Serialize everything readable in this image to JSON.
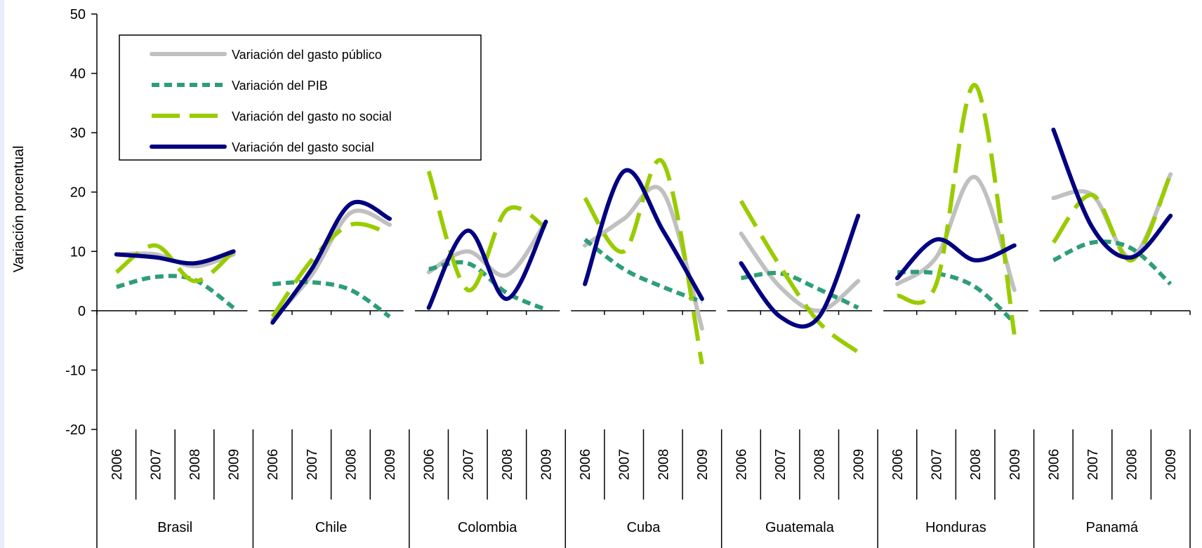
{
  "chart_data": {
    "type": "line",
    "ylabel": "Variación porcentual",
    "ylim": [
      -20,
      50
    ],
    "yticks": [
      -20,
      -10,
      0,
      10,
      20,
      30,
      40,
      50
    ],
    "groups": [
      "Brasil",
      "Chile",
      "Colombia",
      "Cuba",
      "Guatemala",
      "Honduras",
      "Panamá"
    ],
    "years": [
      "2006",
      "2007",
      "2008",
      "2009"
    ],
    "legend_position": "top-left",
    "series": [
      {
        "name": "Variación del gasto público",
        "color": "#c0c0c0",
        "style": "solid",
        "values": [
          [
            9.5,
            9.5,
            7.5,
            9.5
          ],
          [
            -1.5,
            6,
            16.5,
            14.5
          ],
          [
            6.5,
            10,
            6,
            15
          ],
          [
            11,
            15.5,
            20,
            -3
          ],
          [
            13,
            4,
            0,
            5
          ],
          [
            4.5,
            9,
            22.5,
            3.5
          ],
          [
            19,
            19.5,
            9,
            23
          ]
        ]
      },
      {
        "name": "Variación del PIB",
        "color": "#2e9e78",
        "style": "dotted",
        "values": [
          [
            4,
            5.7,
            5.2,
            0.5
          ],
          [
            4.5,
            4.8,
            3.5,
            -1
          ],
          [
            7,
            8,
            3,
            0.2
          ],
          [
            12,
            7,
            4,
            1.5
          ],
          [
            5.5,
            6.3,
            3.6,
            0.5
          ],
          [
            6.5,
            6.3,
            4,
            -2
          ],
          [
            8.5,
            11.5,
            10.5,
            4.5
          ]
        ]
      },
      {
        "name": "Variación del gasto no social",
        "color": "#99cc00",
        "style": "dashed",
        "values": [
          [
            6.5,
            11,
            5,
            10
          ],
          [
            -1,
            8.5,
            14.5,
            13
          ],
          [
            23.5,
            3.5,
            17,
            14
          ],
          [
            19,
            10,
            25,
            -9
          ],
          [
            18.5,
            7.5,
            -2,
            -7
          ],
          [
            2.5,
            4.5,
            38,
            -4
          ],
          [
            11.5,
            19.5,
            8.5,
            23
          ]
        ]
      },
      {
        "name": "Variación del gasto social",
        "color": "#000080",
        "style": "solid",
        "values": [
          [
            9.5,
            9,
            8,
            10
          ],
          [
            -2,
            7,
            18,
            15.5
          ],
          [
            0.5,
            13.5,
            2,
            15
          ],
          [
            4.5,
            23.5,
            13.5,
            2
          ],
          [
            8,
            -1,
            -1,
            16
          ],
          [
            5.5,
            12,
            8.5,
            11
          ],
          [
            30.5,
            14,
            9,
            16
          ]
        ]
      }
    ]
  }
}
